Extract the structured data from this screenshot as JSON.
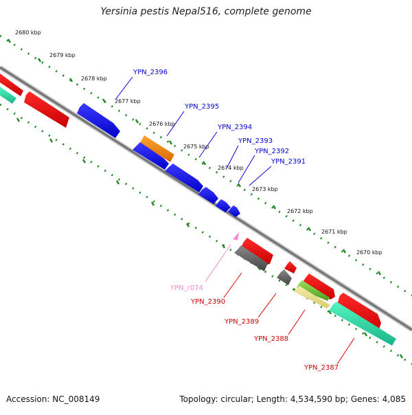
{
  "header": {
    "title": "Yersinia pestis Nepal516, complete genome"
  },
  "footer": {
    "accession": "Accession: NC_008149",
    "summary": "Topology: circular; Length: 4,534,590 bp; Genes: 4,085"
  },
  "colors": {
    "plus_strand_cds": "#0000ff",
    "plus_strand_other": "#ff8800",
    "minus_strand_cds": "#ff0000",
    "rna": "#ff88cc",
    "pseudo": "#666666",
    "ruler_ticks": "#228822",
    "backbone": "#888888",
    "teal": "#33ddaa"
  },
  "ruler": {
    "unit": "kbp",
    "labels": [
      "2680 kbp",
      "2679 kbp",
      "2678 kbp",
      "2677 kbp",
      "2676 kbp",
      "2675 kbp",
      "2674 kbp",
      "2673 kbp",
      "2672 kbp",
      "2671 kbp",
      "2670 kbp"
    ]
  },
  "genes_plus": [
    {
      "id": "YPN_2396"
    },
    {
      "id": "YPN_2395"
    },
    {
      "id": "YPN_2394"
    },
    {
      "id": "YPN_2393"
    },
    {
      "id": "YPN_2392"
    },
    {
      "id": "YPN_2391"
    }
  ],
  "genes_minus": [
    {
      "id": "YPN_r074"
    },
    {
      "id": "YPN_2390"
    },
    {
      "id": "YPN_2389"
    },
    {
      "id": "YPN_2388"
    },
    {
      "id": "YPN_2387"
    }
  ]
}
